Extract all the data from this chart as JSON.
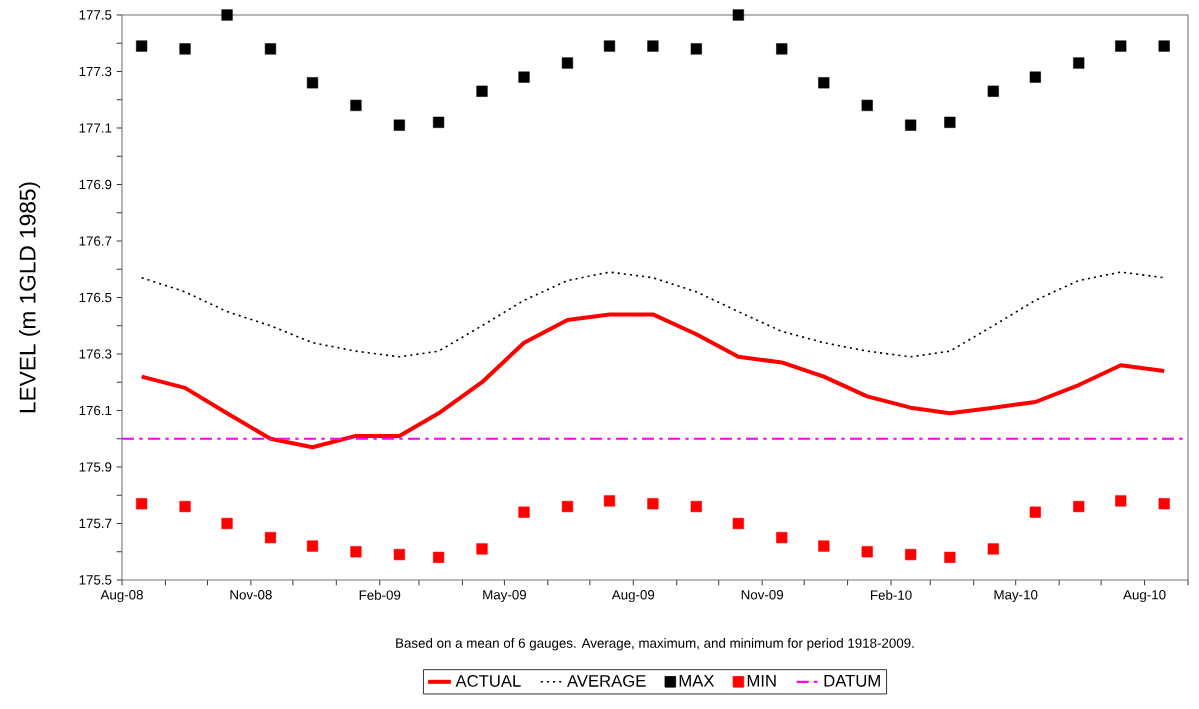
{
  "chart_data": {
    "type": "line",
    "ylabel": "LEVEL (m 1GLD 1985)",
    "annotations": [
      "Based on a mean of 6 gauges.  Average, maximum, and minimum for period 1918-2009."
    ],
    "x": [
      "2008-08-15",
      "2008-09-15",
      "2008-10-15",
      "2008-11-15",
      "2008-12-15",
      "2009-01-15",
      "2009-02-15",
      "2009-03-15",
      "2009-04-15",
      "2009-05-15",
      "2009-06-15",
      "2009-07-15",
      "2009-08-15",
      "2009-09-15",
      "2009-10-15",
      "2009-11-15",
      "2009-12-15",
      "2010-01-15",
      "2010-02-15",
      "2010-03-15",
      "2010-04-15",
      "2010-05-15",
      "2010-06-15",
      "2010-07-15",
      "2010-08-15"
    ],
    "series": [
      {
        "name": "ACTUAL",
        "color": "#ff0000",
        "line_style": "solid",
        "values": [
          176.22,
          176.18,
          176.09,
          176.0,
          175.97,
          176.01,
          176.01,
          176.09,
          176.2,
          176.34,
          176.42,
          176.44,
          176.44,
          176.37,
          176.29,
          176.27,
          176.22,
          176.15,
          176.11,
          176.09,
          176.11,
          176.13,
          176.19,
          176.26,
          176.24
        ]
      },
      {
        "name": "AVERAGE",
        "color": "#000000",
        "line_style": "dotted",
        "values": [
          176.57,
          176.52,
          176.45,
          176.4,
          176.34,
          176.31,
          176.29,
          176.31,
          176.4,
          176.49,
          176.56,
          176.59,
          176.57,
          176.52,
          176.45,
          176.38,
          176.34,
          176.31,
          176.29,
          176.31,
          176.4,
          176.49,
          176.56,
          176.59,
          176.57
        ]
      },
      {
        "name": "MAX",
        "type": "scatter",
        "marker": "square",
        "color": "#000000",
        "values": [
          177.39,
          177.38,
          177.5,
          177.38,
          177.26,
          177.18,
          177.11,
          177.12,
          177.23,
          177.28,
          177.33,
          177.39,
          177.39,
          177.38,
          177.5,
          177.38,
          177.26,
          177.18,
          177.11,
          177.12,
          177.23,
          177.28,
          177.33,
          177.39,
          177.39
        ]
      },
      {
        "name": "MIN",
        "type": "scatter",
        "marker": "square",
        "color": "#ff0000",
        "values": [
          175.77,
          175.76,
          175.7,
          175.65,
          175.62,
          175.6,
          175.59,
          175.58,
          175.61,
          175.74,
          175.76,
          175.78,
          175.77,
          175.76,
          175.7,
          175.65,
          175.62,
          175.6,
          175.59,
          175.58,
          175.61,
          175.74,
          175.76,
          175.78,
          175.77
        ]
      }
    ],
    "ref_lines": [
      {
        "axis": "y",
        "value": 176.0,
        "label": "DATUM",
        "color": "#ff00ff",
        "line_style": "dashdot"
      }
    ],
    "xlim": [
      "2008-08-01",
      "2010-09-01"
    ],
    "xticks": [
      {
        "value": "2008-08-01",
        "label": "Aug-08"
      },
      {
        "value": "2008-09-01",
        "label": null
      },
      {
        "value": "2008-10-01",
        "label": null
      },
      {
        "value": "2008-11-01",
        "label": "Nov-08"
      },
      {
        "value": "2008-12-01",
        "label": null
      },
      {
        "value": "2009-01-01",
        "label": null
      },
      {
        "value": "2009-02-01",
        "label": "Feb-09"
      },
      {
        "value": "2009-03-01",
        "label": null
      },
      {
        "value": "2009-04-01",
        "label": null
      },
      {
        "value": "2009-05-01",
        "label": "May-09"
      },
      {
        "value": "2009-06-01",
        "label": null
      },
      {
        "value": "2009-07-01",
        "label": null
      },
      {
        "value": "2009-08-01",
        "label": "Aug-09"
      },
      {
        "value": "2009-09-01",
        "label": null
      },
      {
        "value": "2009-10-01",
        "label": null
      },
      {
        "value": "2009-11-01",
        "label": "Nov-09"
      },
      {
        "value": "2009-12-01",
        "label": null
      },
      {
        "value": "2010-01-01",
        "label": null
      },
      {
        "value": "2010-02-01",
        "label": "Feb-10"
      },
      {
        "value": "2010-03-01",
        "label": null
      },
      {
        "value": "2010-04-01",
        "label": null
      },
      {
        "value": "2010-05-01",
        "label": "May-10"
      },
      {
        "value": "2010-06-01",
        "label": null
      },
      {
        "value": "2010-07-01",
        "label": null
      },
      {
        "value": "2010-08-01",
        "label": "Aug-10"
      },
      {
        "value": "2010-09-01",
        "label": null
      }
    ],
    "ylim": [
      175.5,
      177.5
    ],
    "yticks": [
      175.5,
      {
        "value": 175.6,
        "label": null
      },
      175.7,
      {
        "value": 175.8,
        "label": null
      },
      175.9,
      {
        "value": 176.0,
        "label": null
      },
      176.1,
      {
        "value": 176.2,
        "label": null
      },
      176.3,
      {
        "value": 176.4,
        "label": null
      },
      176.5,
      {
        "value": 176.6,
        "label": null
      },
      176.7,
      {
        "value": 176.8,
        "label": null
      },
      176.9,
      {
        "value": 177.0,
        "label": null
      },
      177.1,
      {
        "value": 177.2,
        "label": null
      },
      177.3,
      {
        "value": 177.4,
        "label": null
      },
      177.5
    ],
    "grid": false,
    "legend": "bottom"
  }
}
